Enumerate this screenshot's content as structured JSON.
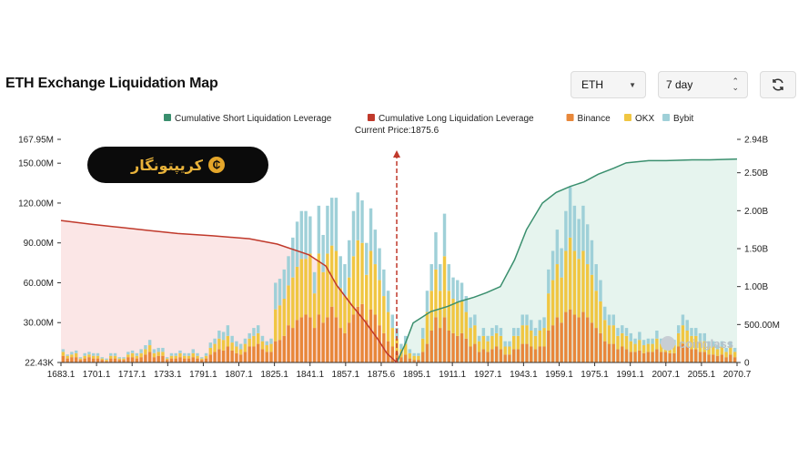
{
  "header": {
    "title": "ETH Exchange Liquidation Map",
    "coin_select": "ETH",
    "range_select": "7 day",
    "refresh_icon": "refresh-icon"
  },
  "banner": {
    "text": "کریپتونگار",
    "logo_icon": "crypto-logo-icon"
  },
  "watermark": {
    "text": "coinglass"
  },
  "colors": {
    "short_cum": "#3a8f6e",
    "long_cum": "#c0392b",
    "short_fill": "#e6f4ee",
    "long_fill": "#fbe6e6",
    "binance": "#e8873a",
    "okx": "#f0c642",
    "bybit": "#9fd0d8",
    "current_price": "#c0392b"
  },
  "chart_data": {
    "type": "bar",
    "legend": [
      "Cumulative Short Liquidation Leverage",
      "Cumulative Long Liquidation Leverage",
      "Binance",
      "OKX",
      "Bybit"
    ],
    "current_price_label": "Current Price:1875.6",
    "current_price": 1875.6,
    "x_range": [
      1683.1,
      2070.7
    ],
    "x_ticks": [
      "1683.1",
      "1701.1",
      "1717.1",
      "1733.1",
      "1791.1",
      "1807.1",
      "1825.1",
      "1841.1",
      "1857.1",
      "1875.6",
      "1895.1",
      "1911.1",
      "1927.1",
      "1943.1",
      "1959.1",
      "1975.1",
      "1991.1",
      "2007.1",
      "2055.1",
      "2070.7"
    ],
    "y_left_ticks": [
      "167.95M",
      "150.00M",
      "120.00M",
      "90.00M",
      "60.00M",
      "30.00M",
      "22.43K"
    ],
    "y_left_values": [
      167.95,
      150,
      120,
      90,
      60,
      30,
      0
    ],
    "y_left_range": [
      0,
      167.95
    ],
    "y_right_ticks": [
      "2.94B",
      "2.50B",
      "2.00B",
      "1.50B",
      "1.00B",
      "500.00M",
      "0"
    ],
    "y_right_values": [
      2.94,
      2.5,
      2.0,
      1.5,
      1.0,
      0.5,
      0
    ],
    "y_right_range": [
      0,
      2.94
    ],
    "long_cumulative": {
      "x": [
        1683.1,
        1701.1,
        1717.1,
        1733.1,
        1750,
        1770,
        1791.1,
        1807.1,
        1825.1,
        1835,
        1841.1,
        1850,
        1857.1,
        1865,
        1870,
        1875.6
      ],
      "y": [
        1.87,
        1.82,
        1.78,
        1.74,
        1.7,
        1.67,
        1.63,
        1.56,
        1.42,
        1.27,
        1.02,
        0.75,
        0.55,
        0.3,
        0.12,
        0.0
      ]
    },
    "short_cumulative": {
      "x": [
        1875.6,
        1880,
        1885,
        1895.1,
        1905,
        1911.1,
        1920,
        1927.1,
        1935,
        1943.1,
        1950,
        1959.1,
        1967,
        1975.1,
        1983,
        1991.1,
        2000,
        2007.1,
        2020,
        2030,
        2045,
        2055.1,
        2070.7
      ],
      "y": [
        0.0,
        0.22,
        0.52,
        0.67,
        0.74,
        0.8,
        0.86,
        0.92,
        1.0,
        1.35,
        1.75,
        2.1,
        2.24,
        2.32,
        2.38,
        2.48,
        2.56,
        2.63,
        2.66,
        2.66,
        2.67,
        2.67,
        2.68
      ]
    },
    "bars_binance": [
      5,
      3,
      4,
      4,
      2,
      3,
      4,
      3,
      3,
      2,
      1,
      3,
      3,
      2,
      2,
      4,
      4,
      3,
      4,
      6,
      8,
      4,
      5,
      5,
      2,
      3,
      3,
      4,
      3,
      3,
      4,
      3,
      2,
      3,
      6,
      8,
      10,
      9,
      12,
      9,
      7,
      6,
      8,
      12,
      12,
      14,
      10,
      8,
      8,
      16,
      17,
      20,
      28,
      26,
      32,
      34,
      36,
      34,
      26,
      36,
      30,
      34,
      42,
      34,
      26,
      22,
      30,
      36,
      42,
      44,
      32,
      40,
      36,
      28,
      22,
      16,
      12,
      8,
      4,
      6,
      3,
      2,
      2,
      8,
      14,
      24,
      34,
      26,
      34,
      24,
      22,
      20,
      22,
      18,
      12,
      14,
      8,
      10,
      8,
      10,
      12,
      10,
      6,
      6,
      10,
      10,
      14,
      14,
      12,
      10,
      12,
      12,
      24,
      28,
      34,
      30,
      38,
      40,
      36,
      34,
      38,
      34,
      30,
      26,
      22,
      16,
      14,
      14,
      10,
      12,
      10,
      8,
      8,
      9,
      7,
      8,
      8,
      10,
      8,
      8,
      7,
      7,
      12,
      14,
      12,
      10,
      10,
      8,
      8,
      6,
      6,
      5,
      6,
      4,
      6,
      4
    ],
    "bars_okx": [
      3,
      2,
      2,
      3,
      1,
      2,
      2,
      2,
      2,
      1,
      1,
      2,
      2,
      1,
      1,
      2,
      3,
      2,
      3,
      4,
      5,
      3,
      3,
      3,
      1,
      2,
      2,
      3,
      2,
      2,
      3,
      2,
      1,
      2,
      5,
      6,
      8,
      8,
      8,
      6,
      5,
      4,
      6,
      6,
      8,
      8,
      6,
      5,
      6,
      24,
      26,
      28,
      30,
      38,
      40,
      44,
      42,
      48,
      26,
      46,
      38,
      48,
      46,
      50,
      30,
      28,
      34,
      44,
      50,
      46,
      34,
      44,
      38,
      34,
      28,
      22,
      14,
      10,
      6,
      8,
      4,
      3,
      3,
      10,
      24,
      30,
      36,
      28,
      46,
      30,
      26,
      26,
      24,
      20,
      14,
      14,
      8,
      10,
      8,
      10,
      10,
      10,
      6,
      6,
      10,
      10,
      14,
      14,
      12,
      10,
      12,
      14,
      28,
      34,
      40,
      34,
      46,
      54,
      48,
      44,
      46,
      40,
      36,
      28,
      24,
      16,
      14,
      14,
      10,
      10,
      10,
      8,
      6,
      8,
      6,
      6,
      6,
      8,
      6,
      6,
      6,
      6,
      10,
      14,
      12,
      10,
      10,
      8,
      8,
      6,
      6,
      5,
      6,
      4,
      6,
      4
    ],
    "bars_bybit": [
      2,
      1,
      2,
      2,
      1,
      2,
      2,
      2,
      2,
      1,
      1,
      2,
      2,
      1,
      1,
      2,
      2,
      2,
      3,
      3,
      4,
      3,
      3,
      3,
      1,
      2,
      2,
      2,
      2,
      2,
      3,
      2,
      1,
      2,
      4,
      4,
      6,
      6,
      8,
      5,
      4,
      4,
      4,
      4,
      6,
      6,
      4,
      3,
      4,
      20,
      20,
      22,
      22,
      30,
      34,
      36,
      36,
      28,
      16,
      36,
      28,
      36,
      36,
      40,
      24,
      24,
      28,
      34,
      36,
      32,
      24,
      32,
      26,
      24,
      20,
      16,
      10,
      8,
      4,
      6,
      3,
      2,
      2,
      8,
      16,
      20,
      28,
      20,
      32,
      20,
      16,
      16,
      14,
      12,
      8,
      8,
      4,
      6,
      4,
      6,
      6,
      6,
      4,
      4,
      6,
      6,
      8,
      8,
      8,
      6,
      8,
      8,
      18,
      22,
      26,
      22,
      30,
      38,
      34,
      30,
      34,
      30,
      26,
      20,
      16,
      10,
      8,
      8,
      6,
      6,
      6,
      6,
      4,
      6,
      4,
      4,
      4,
      6,
      4,
      4,
      4,
      4,
      6,
      8,
      8,
      6,
      6,
      6,
      6,
      4,
      4,
      3,
      4,
      3,
      4,
      3
    ]
  }
}
